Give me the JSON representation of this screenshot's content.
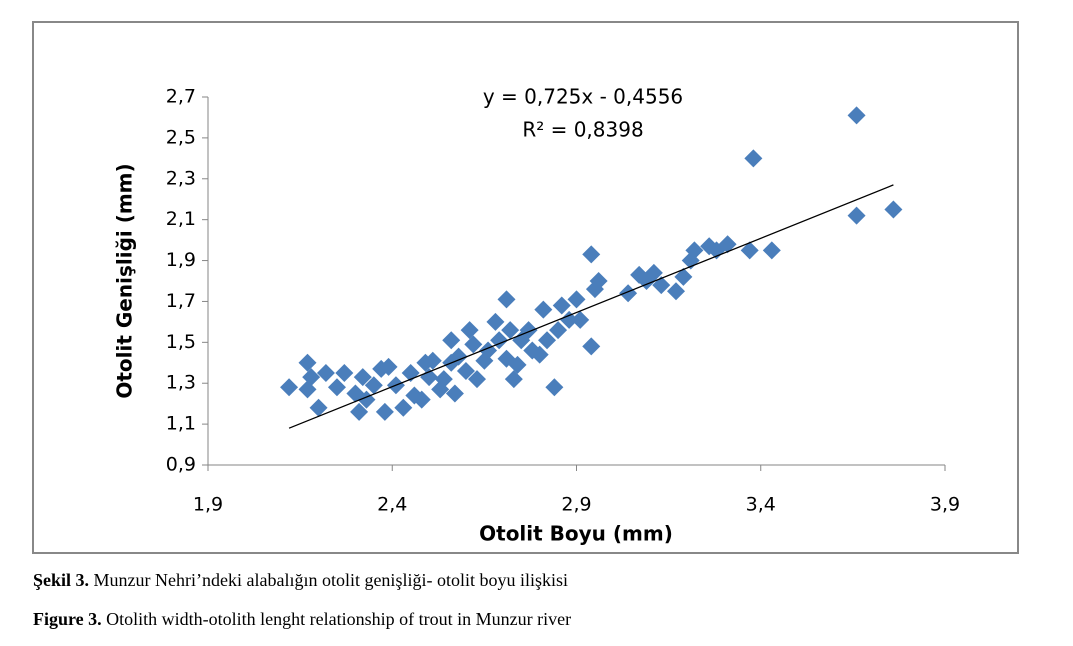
{
  "chart_data": {
    "type": "scatter",
    "x_label": "Otolit Boyu (mm)",
    "y_label": "Otolit Genişliği (mm)",
    "annotations": [
      "y = 0,725x - 0,4556",
      "R² = 0,8398"
    ],
    "color": "#4a7ebb",
    "x": [
      2.12,
      2.17,
      2.17,
      2.18,
      2.2,
      2.22,
      2.25,
      2.27,
      2.3,
      2.31,
      2.32,
      2.33,
      2.35,
      2.37,
      2.38,
      2.39,
      2.41,
      2.43,
      2.45,
      2.46,
      2.48,
      2.49,
      2.5,
      2.51,
      2.53,
      2.54,
      2.56,
      2.56,
      2.57,
      2.58,
      2.6,
      2.61,
      2.62,
      2.63,
      2.65,
      2.66,
      2.68,
      2.69,
      2.71,
      2.71,
      2.72,
      2.73,
      2.74,
      2.75,
      2.77,
      2.78,
      2.8,
      2.81,
      2.82,
      2.84,
      2.85,
      2.86,
      2.88,
      2.9,
      2.91,
      2.94,
      2.94,
      2.95,
      2.96,
      3.04,
      3.07,
      3.09,
      3.11,
      3.13,
      3.17,
      3.19,
      3.21,
      3.22,
      3.26,
      3.28,
      3.31,
      3.38,
      3.37,
      3.43,
      3.66,
      3.66,
      3.76
    ],
    "values": [
      1.28,
      1.4,
      1.27,
      1.33,
      1.18,
      1.35,
      1.28,
      1.35,
      1.25,
      1.16,
      1.33,
      1.22,
      1.29,
      1.37,
      1.16,
      1.38,
      1.29,
      1.18,
      1.35,
      1.24,
      1.22,
      1.4,
      1.33,
      1.41,
      1.27,
      1.32,
      1.4,
      1.51,
      1.25,
      1.43,
      1.36,
      1.56,
      1.49,
      1.32,
      1.41,
      1.46,
      1.6,
      1.51,
      1.42,
      1.71,
      1.56,
      1.32,
      1.39,
      1.51,
      1.56,
      1.46,
      1.44,
      1.66,
      1.51,
      1.28,
      1.56,
      1.68,
      1.61,
      1.71,
      1.61,
      1.48,
      1.93,
      1.76,
      1.8,
      1.74,
      1.83,
      1.8,
      1.84,
      1.78,
      1.75,
      1.82,
      1.9,
      1.95,
      1.97,
      1.95,
      1.98,
      2.4,
      1.95,
      1.95,
      2.61,
      2.12,
      2.15
    ],
    "trendline": {
      "x": [
        2.12,
        3.76
      ],
      "y": [
        1.08,
        2.27
      ]
    },
    "xlim": [
      1.9,
      3.9
    ],
    "xticks": [
      {
        "value": 1.9,
        "label": "1,9"
      },
      {
        "value": 2.4,
        "label": "2,4"
      },
      {
        "value": 2.9,
        "label": "2,9"
      },
      {
        "value": 3.4,
        "label": "3,4"
      },
      {
        "value": 3.9,
        "label": "3,9"
      }
    ],
    "ylim": [
      0.9,
      2.7
    ],
    "yticks": [
      {
        "value": 0.9,
        "label": "0,9"
      },
      {
        "value": 1.1,
        "label": "1,1"
      },
      {
        "value": 1.3,
        "label": "1,3"
      },
      {
        "value": 1.5,
        "label": "1,5"
      },
      {
        "value": 1.7,
        "label": "1,7"
      },
      {
        "value": 1.9,
        "label": "1,9"
      },
      {
        "value": 2.1,
        "label": "2,1"
      },
      {
        "value": 2.3,
        "label": "2,3"
      },
      {
        "value": 2.5,
        "label": "2,5"
      },
      {
        "value": 2.7,
        "label": "2,7"
      }
    ],
    "grid": false
  },
  "caption": [
    {
      "label": "Şekil 3.",
      "text": " Munzur Nehri’ndeki alabalığın otolit genişliği- otolit boyu ilişkisi"
    },
    {
      "label": "Figure 3.",
      "text": " Otolith width-otolith lenght relationship of trout in Munzur river"
    }
  ]
}
